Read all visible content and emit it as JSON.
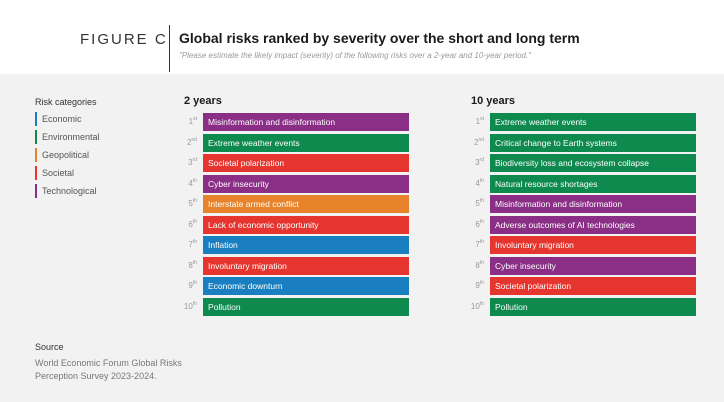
{
  "header": {
    "figure_label": "FIGURE C",
    "title": "Global risks ranked by severity over the short and long term",
    "subtitle": "\"Please estimate the likely impact (severity) of the following risks over a 2-year and 10-year period.\""
  },
  "colors": {
    "Economic": "#1a7fc1",
    "Environmental": "#0e8a4e",
    "Geopolitical": "#e7832a",
    "Societal": "#e6352f",
    "Technological": "#8a2e86"
  },
  "legend": {
    "title": "Risk categories",
    "items": [
      {
        "label": "Economic",
        "category": "Economic"
      },
      {
        "label": "Environmental",
        "category": "Environmental"
      },
      {
        "label": "Geopolitical",
        "category": "Geopolitical"
      },
      {
        "label": "Societal",
        "category": "Societal"
      },
      {
        "label": "Technological",
        "category": "Technological"
      }
    ]
  },
  "columns": [
    {
      "title": "2 years",
      "risks": [
        {
          "rank": "1",
          "suffix": "st",
          "label": "Misinformation and disinformation",
          "category": "Technological"
        },
        {
          "rank": "2",
          "suffix": "nd",
          "label": "Extreme weather events",
          "category": "Environmental"
        },
        {
          "rank": "3",
          "suffix": "rd",
          "label": "Societal polarization",
          "category": "Societal"
        },
        {
          "rank": "4",
          "suffix": "th",
          "label": "Cyber insecurity",
          "category": "Technological"
        },
        {
          "rank": "5",
          "suffix": "th",
          "label": "Interstate armed conflict",
          "category": "Geopolitical"
        },
        {
          "rank": "6",
          "suffix": "th",
          "label": "Lack of economic opportunity",
          "category": "Societal"
        },
        {
          "rank": "7",
          "suffix": "th",
          "label": "Inflation",
          "category": "Economic"
        },
        {
          "rank": "8",
          "suffix": "th",
          "label": "Involuntary migration",
          "category": "Societal"
        },
        {
          "rank": "9",
          "suffix": "th",
          "label": "Economic downturn",
          "category": "Economic"
        },
        {
          "rank": "10",
          "suffix": "th",
          "label": "Pollution",
          "category": "Environmental"
        }
      ]
    },
    {
      "title": "10 years",
      "risks": [
        {
          "rank": "1",
          "suffix": "st",
          "label": "Extreme weather events",
          "category": "Environmental"
        },
        {
          "rank": "2",
          "suffix": "nd",
          "label": "Critical change to Earth systems",
          "category": "Environmental"
        },
        {
          "rank": "3",
          "suffix": "rd",
          "label": "Biodiversity loss and ecosystem collapse",
          "category": "Environmental"
        },
        {
          "rank": "4",
          "suffix": "th",
          "label": "Natural resource shortages",
          "category": "Environmental"
        },
        {
          "rank": "5",
          "suffix": "th",
          "label": "Misinformation and disinformation",
          "category": "Technological"
        },
        {
          "rank": "6",
          "suffix": "th",
          "label": "Adverse outcomes of AI technologies",
          "category": "Technological"
        },
        {
          "rank": "7",
          "suffix": "th",
          "label": "Involuntary migration",
          "category": "Societal"
        },
        {
          "rank": "8",
          "suffix": "th",
          "label": "Cyber insecurity",
          "category": "Technological"
        },
        {
          "rank": "9",
          "suffix": "th",
          "label": "Societal polarization",
          "category": "Societal"
        },
        {
          "rank": "10",
          "suffix": "th",
          "label": "Pollution",
          "category": "Environmental"
        }
      ]
    }
  ],
  "source": {
    "heading": "Source",
    "text": "World Economic Forum Global Risks Perception Survey 2023-2024."
  }
}
